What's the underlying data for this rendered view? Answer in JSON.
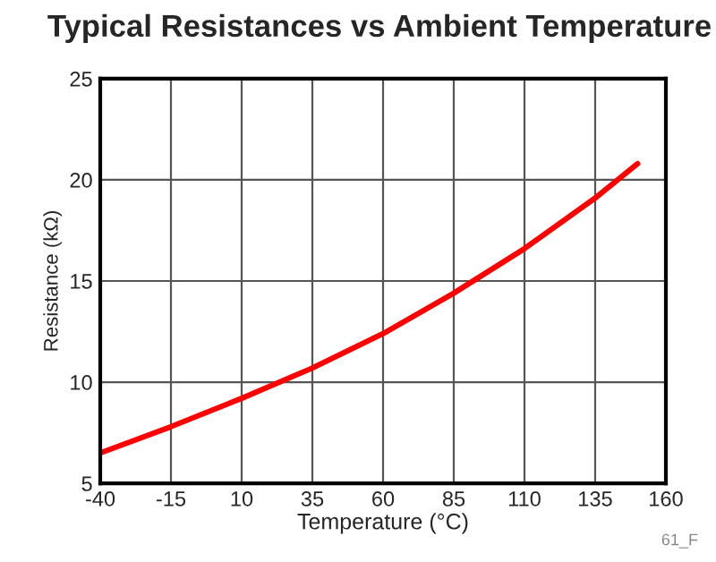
{
  "chart_data": {
    "type": "line",
    "title": "Typical Resistances vs Ambient Temperature",
    "xlabel": "Temperature (°C)",
    "ylabel": "Resistance (kΩ)",
    "x": [
      -40,
      -15,
      10,
      35,
      60,
      85,
      110,
      135,
      150
    ],
    "series": [
      {
        "color": "#ff0000",
        "values": [
          6.5,
          7.8,
          9.2,
          10.7,
          12.4,
          14.4,
          16.6,
          19.1,
          20.8
        ]
      }
    ],
    "xlim": [
      -40,
      160
    ],
    "xticks": [
      -40,
      -15,
      10,
      35,
      60,
      85,
      110,
      135,
      160
    ],
    "ylim": [
      5,
      25
    ],
    "yticks": [
      5,
      10,
      15,
      20,
      25
    ],
    "grid": true,
    "legend": false,
    "annotations": [
      "61_F"
    ]
  }
}
